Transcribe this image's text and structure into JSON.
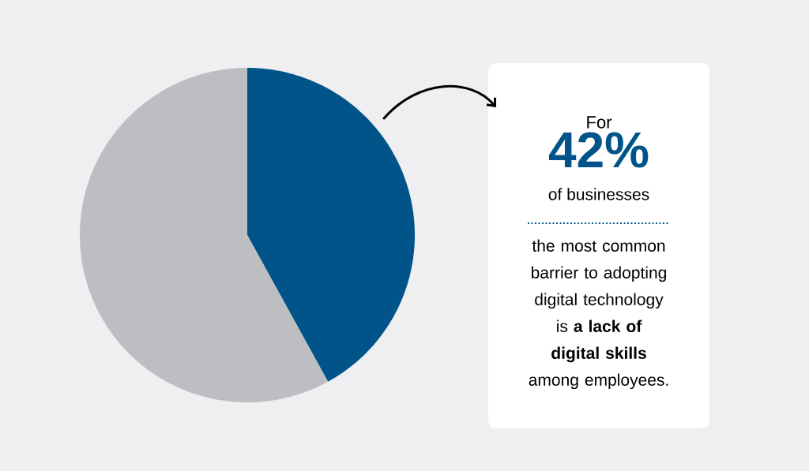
{
  "chart_data": {
    "type": "pie",
    "categories": [
      null,
      null
    ],
    "values": [
      42,
      58
    ],
    "colors": [
      "#00548a",
      "#bdbec2"
    ],
    "annotations": [
      "For",
      "42%",
      "of businesses",
      "the most common barrier to adopting digital technology is **a lack of digital skills** among employees."
    ]
  }
}
